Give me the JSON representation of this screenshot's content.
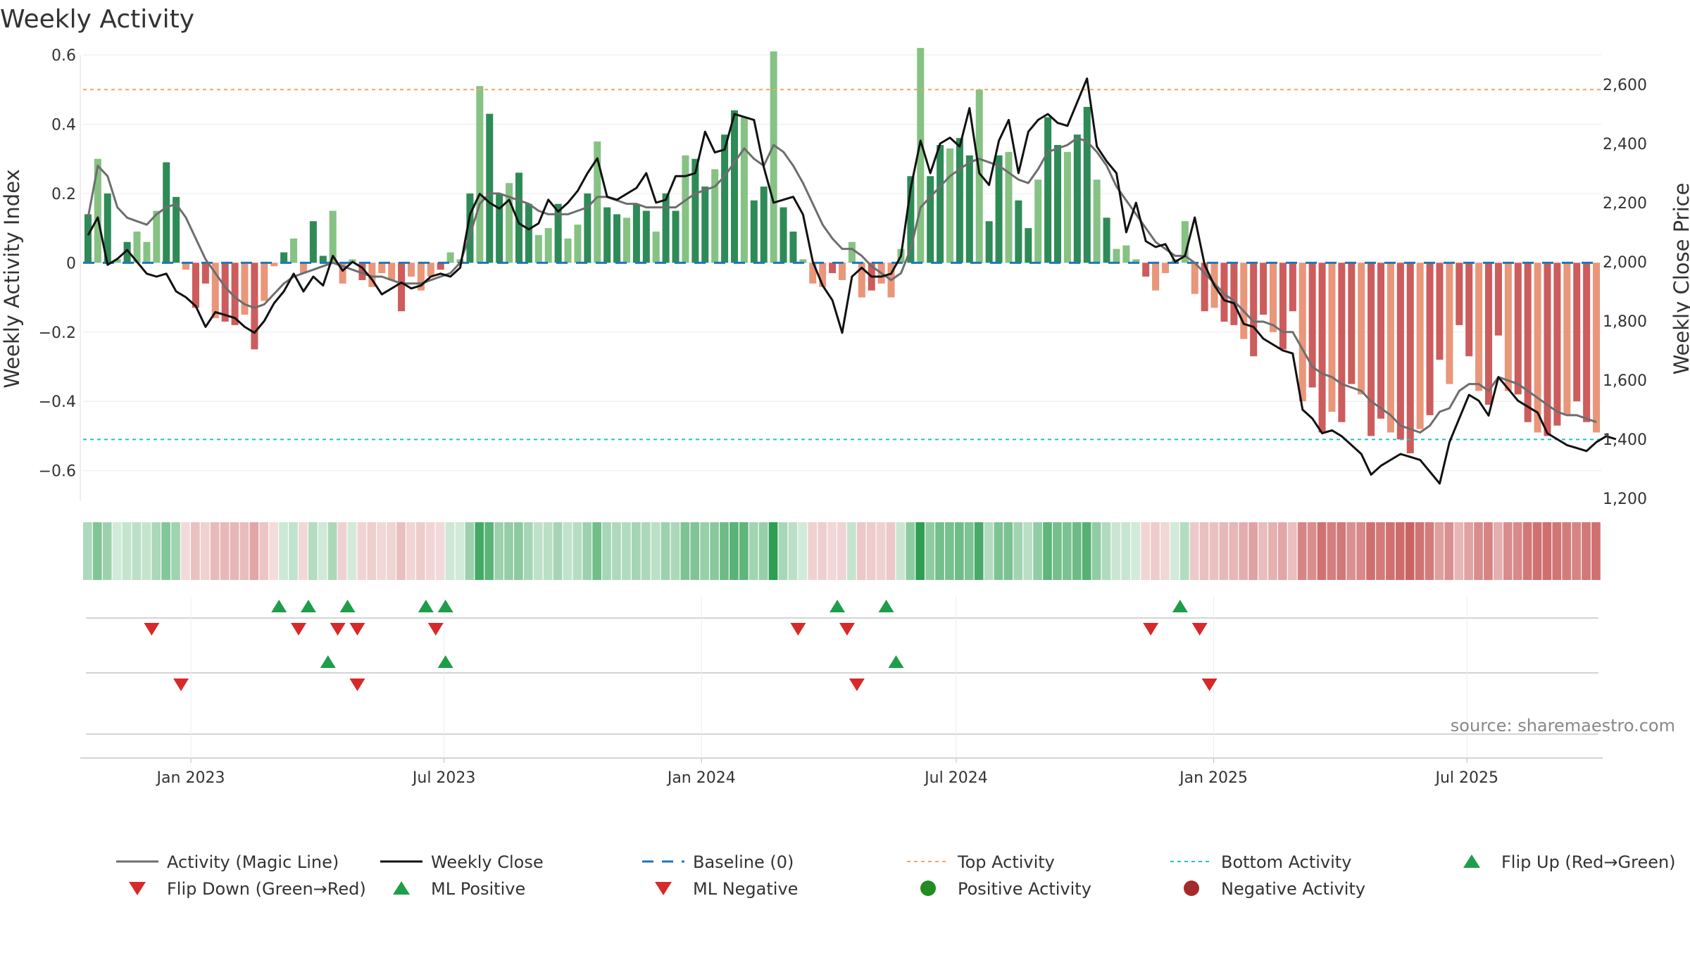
{
  "chart_data": {
    "type": "bar",
    "title": "Weekly Activity",
    "ylabel": "Weekly Activity Index",
    "y2label": "Weekly Close Price",
    "ylim": [
      -0.68,
      0.6
    ],
    "y2lim": [
      1200,
      2700
    ],
    "yticks": [
      0.6,
      0.4,
      0.2,
      0,
      -0.2,
      -0.4,
      -0.6
    ],
    "ytick_labels": [
      "0.6",
      "0.4",
      "0.2",
      "0",
      "−0.2",
      "−0.4",
      "−0.6"
    ],
    "y2ticks": [
      2600,
      2400,
      2200,
      2000,
      1800,
      1600,
      1400,
      1200
    ],
    "y2tick_labels": [
      "2,600",
      "2,400",
      "2,200",
      "2,000",
      "1,800",
      "1,600",
      "1,400",
      "1,200"
    ],
    "x_date_range": [
      "2022-10-16",
      "2025-10-05"
    ],
    "xticks": [
      {
        "date": "2023-01-01",
        "label": "Jan 2023"
      },
      {
        "date": "2023-07-01",
        "label": "Jul 2023"
      },
      {
        "date": "2024-01-01",
        "label": "Jan 2024"
      },
      {
        "date": "2024-07-01",
        "label": "Jul 2024"
      },
      {
        "date": "2025-01-01",
        "label": "Jan 2025"
      },
      {
        "date": "2025-07-01",
        "label": "Jul 2025"
      }
    ],
    "top_activity": 0.5,
    "bottom_activity": -0.51,
    "series": [
      {
        "name": "Activity Index",
        "kind": "bar",
        "values": [
          0.14,
          0.3,
          0.2,
          0.01,
          0.06,
          0.09,
          0.06,
          0.15,
          0.29,
          0.19,
          -0.02,
          -0.13,
          -0.06,
          -0.16,
          -0.17,
          -0.18,
          -0.15,
          -0.25,
          -0.11,
          -0.01,
          0.03,
          0.07,
          -0.03,
          0.12,
          0.02,
          0.15,
          -0.06,
          0.01,
          -0.05,
          -0.07,
          -0.03,
          -0.05,
          -0.14,
          -0.04,
          -0.08,
          -0.04,
          -0.02,
          0.03,
          0.01,
          0.2,
          0.51,
          0.43,
          0.2,
          0.23,
          0.26,
          0.17,
          0.08,
          0.1,
          0.17,
          0.07,
          0.11,
          0.2,
          0.35,
          0.16,
          0.14,
          0.13,
          0.17,
          0.15,
          0.09,
          0.2,
          0.15,
          0.31,
          0.3,
          0.22,
          0.27,
          0.37,
          0.44,
          0.42,
          0.18,
          0.22,
          0.61,
          0.16,
          0.09,
          0.01,
          -0.06,
          -0.07,
          -0.03,
          -0.05,
          0.06,
          -0.1,
          -0.08,
          -0.06,
          -0.1,
          0.04,
          0.25,
          0.62,
          0.25,
          0.34,
          0.33,
          0.36,
          0.31,
          0.5,
          0.12,
          0.31,
          0.32,
          0.18,
          0.1,
          0.24,
          0.42,
          0.34,
          0.32,
          0.37,
          0.45,
          0.24,
          0.13,
          0.04,
          0.05,
          0.01,
          -0.04,
          -0.08,
          -0.03,
          0.01,
          0.12,
          -0.09,
          -0.14,
          -0.13,
          -0.17,
          -0.18,
          -0.22,
          -0.27,
          -0.15,
          -0.2,
          -0.25,
          -0.14,
          -0.4,
          -0.36,
          -0.49,
          -0.43,
          -0.46,
          -0.35,
          -0.38,
          -0.5,
          -0.45,
          -0.49,
          -0.51,
          -0.55,
          -0.48,
          -0.44,
          -0.28,
          -0.35,
          -0.18,
          -0.27,
          -0.37,
          -0.41,
          -0.21,
          -0.37,
          -0.38,
          -0.46,
          -0.49,
          -0.5,
          -0.47,
          -0.44,
          -0.4,
          -0.46,
          -0.49
        ]
      },
      {
        "name": "Activity (Magic Line)",
        "kind": "line",
        "values": [
          0.13,
          0.28,
          0.25,
          0.16,
          0.13,
          0.12,
          0.11,
          0.14,
          0.16,
          0.17,
          0.13,
          0.07,
          0.01,
          -0.03,
          -0.07,
          -0.1,
          -0.12,
          -0.13,
          -0.12,
          -0.09,
          -0.06,
          -0.04,
          -0.03,
          -0.02,
          -0.01,
          0.0,
          -0.01,
          -0.02,
          -0.03,
          -0.04,
          -0.04,
          -0.05,
          -0.06,
          -0.06,
          -0.06,
          -0.05,
          -0.04,
          -0.03,
          0.0,
          0.08,
          0.17,
          0.2,
          0.2,
          0.19,
          0.18,
          0.17,
          0.15,
          0.14,
          0.14,
          0.14,
          0.15,
          0.16,
          0.19,
          0.19,
          0.18,
          0.17,
          0.17,
          0.16,
          0.16,
          0.16,
          0.16,
          0.18,
          0.2,
          0.21,
          0.22,
          0.25,
          0.29,
          0.33,
          0.3,
          0.28,
          0.34,
          0.32,
          0.28,
          0.23,
          0.17,
          0.11,
          0.07,
          0.04,
          0.04,
          0.02,
          -0.01,
          -0.03,
          -0.05,
          -0.03,
          0.04,
          0.16,
          0.19,
          0.22,
          0.25,
          0.27,
          0.29,
          0.3,
          0.29,
          0.28,
          0.26,
          0.24,
          0.23,
          0.27,
          0.32,
          0.33,
          0.34,
          0.36,
          0.35,
          0.32,
          0.28,
          0.22,
          0.18,
          0.14,
          0.1,
          0.06,
          0.04,
          0.02,
          0.02,
          0.0,
          -0.03,
          -0.06,
          -0.09,
          -0.11,
          -0.14,
          -0.17,
          -0.17,
          -0.18,
          -0.2,
          -0.2,
          -0.25,
          -0.3,
          -0.32,
          -0.33,
          -0.35,
          -0.36,
          -0.37,
          -0.4,
          -0.42,
          -0.44,
          -0.47,
          -0.48,
          -0.49,
          -0.47,
          -0.43,
          -0.42,
          -0.37,
          -0.35,
          -0.35,
          -0.37,
          -0.33,
          -0.34,
          -0.35,
          -0.37,
          -0.39,
          -0.41,
          -0.43,
          -0.44,
          -0.44,
          -0.45,
          -0.46
        ]
      },
      {
        "name": "Weekly Close",
        "kind": "line",
        "axis": "right",
        "values": [
          2090,
          2150,
          1990,
          2010,
          2040,
          2000,
          1960,
          1950,
          1960,
          1900,
          1880,
          1850,
          1780,
          1830,
          1820,
          1810,
          1780,
          1760,
          1800,
          1860,
          1900,
          1960,
          1900,
          1950,
          1920,
          2020,
          1970,
          2000,
          1980,
          1940,
          1890,
          1910,
          1930,
          1910,
          1920,
          1950,
          1960,
          1950,
          1980,
          2160,
          2230,
          2200,
          2180,
          2210,
          2130,
          2110,
          2130,
          2210,
          2170,
          2200,
          2240,
          2300,
          2350,
          2220,
          2210,
          2230,
          2250,
          2300,
          2200,
          2210,
          2290,
          2290,
          2300,
          2440,
          2370,
          2380,
          2500,
          2490,
          2480,
          2320,
          2200,
          2210,
          2220,
          2160,
          2000,
          1920,
          1870,
          1760,
          1950,
          1980,
          1950,
          1950,
          1960,
          2020,
          2250,
          2410,
          2300,
          2400,
          2420,
          2390,
          2520,
          2300,
          2260,
          2410,
          2480,
          2300,
          2440,
          2480,
          2500,
          2470,
          2460,
          2540,
          2620,
          2390,
          2340,
          2300,
          2100,
          2200,
          2070,
          2050,
          2060,
          2000,
          2020,
          2150,
          1990,
          1920,
          1870,
          1860,
          1790,
          1780,
          1740,
          1720,
          1700,
          1690,
          1500,
          1470,
          1420,
          1430,
          1410,
          1380,
          1350,
          1280,
          1310,
          1330,
          1350,
          1340,
          1330,
          1290,
          1250,
          1390,
          1470,
          1550,
          1530,
          1480,
          1610,
          1570,
          1530,
          1510,
          1490,
          1420,
          1400,
          1380,
          1370,
          1360,
          1390,
          1410,
          1400
        ]
      }
    ],
    "baseline": 0,
    "heatstrip": "activity intensity per week (green positive, red negative)",
    "events": {
      "flip_up": [
        "2023-03-05",
        "2023-03-26",
        "2023-04-23",
        "2023-06-18",
        "2023-07-02",
        "2024-04-07",
        "2024-05-12",
        "2024-12-08"
      ],
      "flip_down": [
        "2022-12-04",
        "2023-03-19",
        "2023-04-16",
        "2023-04-30",
        "2023-06-25",
        "2024-03-10",
        "2024-04-14",
        "2024-11-17",
        "2024-12-22"
      ],
      "ml_positive": [
        "2023-04-09",
        "2023-07-02",
        "2024-05-19"
      ],
      "ml_negative": [
        "2022-12-25",
        "2023-04-30",
        "2024-04-21",
        "2024-12-29"
      ]
    },
    "source_text": "source: sharemaestro.com",
    "legend": [
      "Activity (Magic Line)",
      "Weekly Close",
      "Baseline (0)",
      "Top Activity",
      "Bottom Activity",
      "Flip Up (Red→Green)",
      "Flip Down (Green→Red)",
      "ML Positive",
      "ML Negative",
      "Positive Activity",
      "Negative Activity"
    ],
    "colors": {
      "pos_dark": "#2e8b57",
      "pos_light": "#86c283",
      "neg_dark": "#cd5c5c",
      "neg_light": "#e9967a",
      "magic": "#6e6e6e",
      "close": "#111111",
      "baseline": "#1f77b4",
      "top": "#f4a460",
      "bottom": "#20c2c8",
      "up": "#1e9e4a",
      "down": "#d62a2a",
      "pos_dot": "#228b22",
      "neg_dot": "#a52a2a"
    }
  }
}
